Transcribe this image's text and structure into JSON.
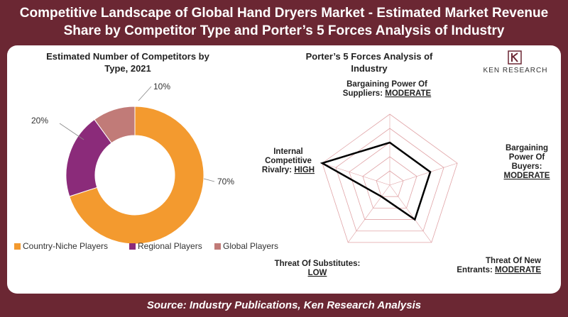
{
  "header": {
    "title_line1": "Competitive Landscape of Global Hand Dryers Market - Estimated Market Revenue",
    "title_line2": "Share by Competitor Type and Porter’s 5 Forces Analysis of Industry"
  },
  "logo": {
    "name": "Ken Research",
    "text": "KEN RESEARCH",
    "mark": "K"
  },
  "footer": {
    "source": "Source: Industry Publications, Ken Research Analysis"
  },
  "colors": {
    "brand": "#6b2733",
    "country_niche": "#f39a2f",
    "regional": "#8b2b7a",
    "global": "#c17b78",
    "radar_line": "#000000",
    "radar_grid": "#e0a3a6"
  },
  "chart_data": [
    {
      "type": "pie",
      "title": "Estimated Number of Competitors by Type, 2021",
      "title_lines": [
        "Estimated Number of Competitors by",
        "Type, 2021"
      ],
      "donut": true,
      "labels": [
        "Country-Niche Players",
        "Regional Players",
        "Global Players"
      ],
      "values": [
        70,
        20,
        10
      ],
      "value_labels": [
        "70%",
        "20%",
        "10%"
      ],
      "legend": "bottom"
    },
    {
      "type": "radar",
      "title": "Porter’s 5 Forces Analysis of Industry",
      "title_lines": [
        "Porter’s 5 Forces Analysis of",
        "Industry"
      ],
      "axes": [
        {
          "label_lines": [
            "Bargaining Power Of",
            "Suppliers: "
          ],
          "rating": "MODERATE",
          "value": 3
        },
        {
          "label_lines": [
            "Bargaining",
            "Power Of",
            "Buyers:"
          ],
          "rating": "MODERATE",
          "value": 3
        },
        {
          "label_lines": [
            "Threat Of New",
            "Entrants: "
          ],
          "rating": "MODERATE",
          "value": 3
        },
        {
          "label_lines": [
            "Threat Of Substitutes:"
          ],
          "rating": "LOW",
          "value": 1
        },
        {
          "label_lines": [
            "Internal",
            "Competitive",
            "Rivalry: "
          ],
          "rating": "HIGH",
          "value": 5
        }
      ],
      "scale_max": 5,
      "rings": 5,
      "grid": true
    }
  ]
}
